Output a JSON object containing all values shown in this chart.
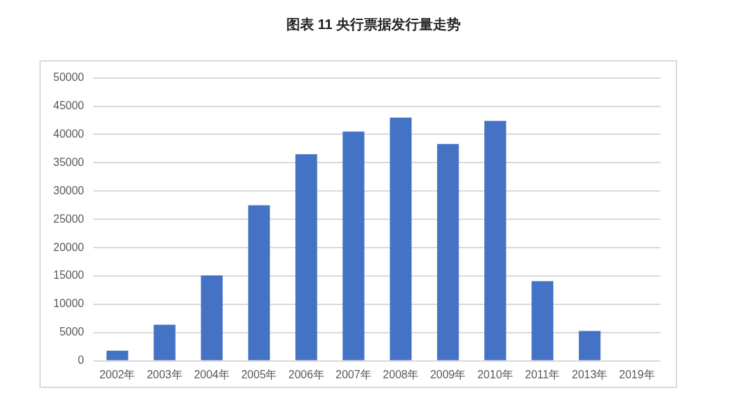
{
  "chart_data": {
    "type": "bar",
    "title": "图表 11 央行票据发行量走势",
    "categories": [
      "2002年",
      "2003年",
      "2004年",
      "2005年",
      "2006年",
      "2007年",
      "2008年",
      "2009年",
      "2010年",
      "2011年",
      "2013年",
      "2019年"
    ],
    "values": [
      1800,
      6400,
      15100,
      27500,
      36500,
      40500,
      43000,
      38300,
      42400,
      14100,
      5300,
      0
    ],
    "color": "#4472c4",
    "ylim": [
      0,
      50000
    ],
    "yticks": [
      0,
      5000,
      10000,
      15000,
      20000,
      25000,
      30000,
      35000,
      40000,
      45000,
      50000
    ],
    "grid": "y",
    "legend": false
  }
}
